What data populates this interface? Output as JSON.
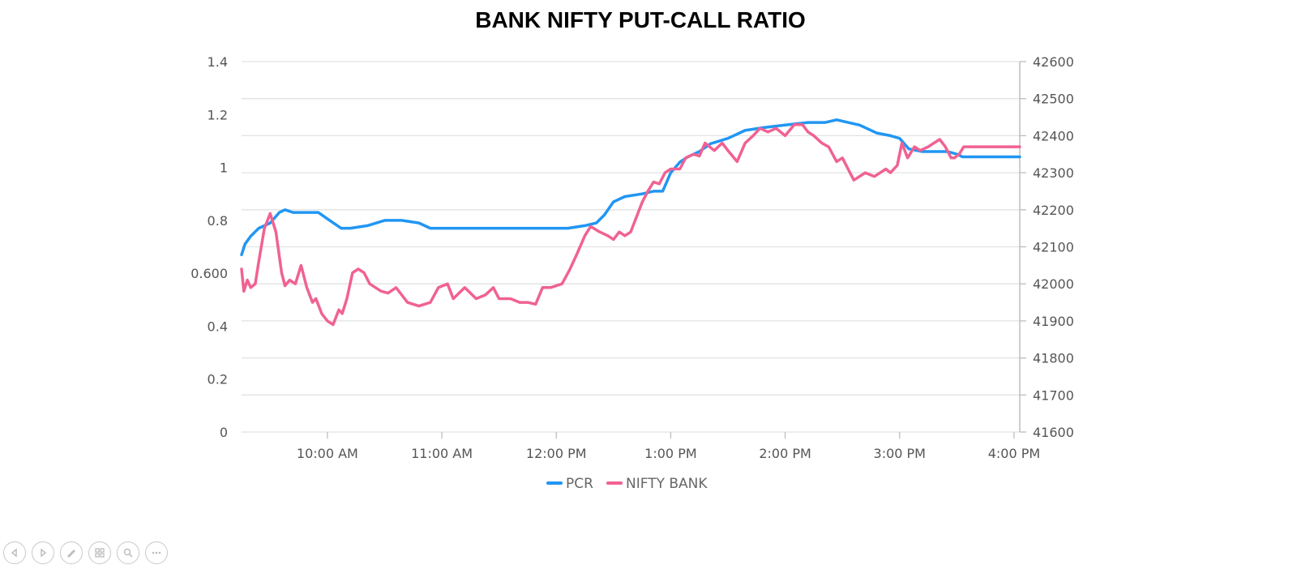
{
  "chart_data": {
    "type": "line",
    "title": "BANK NIFTY PUT-CALL RATIO",
    "xlabel": "",
    "ylabel": "",
    "x_ticks": [
      "10:00 AM",
      "11:00 AM",
      "12:00 PM",
      "1:00 PM",
      "2:00 PM",
      "3:00 PM",
      "4:00 PM"
    ],
    "x_range_hours": [
      9.25,
      16.05
    ],
    "y_left": {
      "ticks": [
        "0",
        "0.2",
        "0.4",
        "0.600",
        "0.8",
        "1",
        "1.2",
        "1.4"
      ],
      "ylim": [
        0,
        1.4
      ]
    },
    "y_right": {
      "ticks": [
        "41600",
        "41700",
        "41800",
        "41900",
        "42000",
        "42100",
        "42200",
        "42300",
        "42400",
        "42500",
        "42600"
      ],
      "ylim": [
        41600,
        42600
      ]
    },
    "grid": true,
    "legend_position": "bottom-center",
    "series": [
      {
        "name": "PCR",
        "color": "#2196f3",
        "axis": "left",
        "x": [
          9.25,
          9.28,
          9.33,
          9.4,
          9.5,
          9.58,
          9.63,
          9.7,
          9.8,
          9.92,
          10.02,
          10.12,
          10.2,
          10.35,
          10.5,
          10.65,
          10.8,
          10.9,
          11.2,
          11.5,
          11.8,
          12.1,
          12.25,
          12.35,
          12.42,
          12.5,
          12.6,
          12.75,
          12.85,
          12.93,
          13.0,
          13.08,
          13.15,
          13.25,
          13.35,
          13.5,
          13.65,
          13.8,
          14.0,
          14.2,
          14.35,
          14.45,
          14.55,
          14.65,
          14.8,
          14.92,
          15.0,
          15.08,
          15.2,
          15.3,
          15.42,
          15.5,
          15.55,
          15.6,
          16.05
        ],
        "y": [
          0.67,
          0.71,
          0.74,
          0.77,
          0.79,
          0.83,
          0.84,
          0.83,
          0.83,
          0.83,
          0.8,
          0.77,
          0.77,
          0.78,
          0.8,
          0.8,
          0.79,
          0.77,
          0.77,
          0.77,
          0.77,
          0.77,
          0.78,
          0.79,
          0.82,
          0.87,
          0.89,
          0.9,
          0.91,
          0.91,
          0.98,
          1.02,
          1.04,
          1.06,
          1.09,
          1.11,
          1.14,
          1.15,
          1.16,
          1.17,
          1.17,
          1.18,
          1.17,
          1.16,
          1.13,
          1.12,
          1.11,
          1.07,
          1.06,
          1.06,
          1.06,
          1.05,
          1.04,
          1.04,
          1.04
        ]
      },
      {
        "name": "NIFTY BANK",
        "color": "#f06292",
        "axis": "right",
        "x": [
          9.25,
          9.27,
          9.3,
          9.33,
          9.37,
          9.4,
          9.45,
          9.5,
          9.55,
          9.6,
          9.63,
          9.67,
          9.72,
          9.77,
          9.82,
          9.87,
          9.9,
          9.95,
          10.0,
          10.05,
          10.1,
          10.13,
          10.17,
          10.22,
          10.27,
          10.32,
          10.37,
          10.42,
          10.47,
          10.53,
          10.6,
          10.7,
          10.8,
          10.9,
          10.97,
          11.05,
          11.1,
          11.2,
          11.3,
          11.38,
          11.45,
          11.5,
          11.6,
          11.68,
          11.75,
          11.82,
          11.88,
          11.95,
          12.05,
          12.12,
          12.18,
          12.25,
          12.3,
          12.38,
          12.45,
          12.5,
          12.55,
          12.6,
          12.65,
          12.7,
          12.75,
          12.8,
          12.85,
          12.9,
          12.95,
          13.0,
          13.08,
          13.13,
          13.2,
          13.25,
          13.3,
          13.38,
          13.45,
          13.5,
          13.58,
          13.65,
          13.72,
          13.78,
          13.85,
          13.92,
          14.0,
          14.08,
          14.15,
          14.2,
          14.25,
          14.32,
          14.38,
          14.45,
          14.5,
          14.55,
          14.6,
          14.7,
          14.78,
          14.88,
          14.92,
          14.98,
          15.02,
          15.07,
          15.13,
          15.18,
          15.25,
          15.3,
          15.35,
          15.4,
          15.45,
          15.48,
          15.52,
          15.56,
          16.05
        ],
        "y": [
          42040,
          41980,
          42010,
          41990,
          42000,
          42060,
          42150,
          42190,
          42140,
          42030,
          41995,
          42010,
          42000,
          42050,
          41990,
          41950,
          41960,
          41920,
          41900,
          41890,
          41930,
          41920,
          41960,
          42030,
          42040,
          42030,
          42000,
          41990,
          41980,
          41975,
          41990,
          41950,
          41940,
          41950,
          41990,
          42000,
          41960,
          41990,
          41960,
          41970,
          41990,
          41960,
          41960,
          41950,
          41950,
          41945,
          41990,
          41990,
          42000,
          42040,
          42080,
          42130,
          42155,
          42140,
          42130,
          42120,
          42140,
          42130,
          42140,
          42180,
          42220,
          42250,
          42275,
          42270,
          42300,
          42310,
          42310,
          42340,
          42350,
          42345,
          42380,
          42360,
          42380,
          42360,
          42330,
          42380,
          42400,
          42420,
          42410,
          42420,
          42400,
          42430,
          42430,
          42410,
          42400,
          42380,
          42370,
          42330,
          42340,
          42310,
          42280,
          42300,
          42290,
          42310,
          42300,
          42320,
          42380,
          42340,
          42370,
          42360,
          42370,
          42380,
          42390,
          42370,
          42340,
          42340,
          42350,
          42370,
          42370
        ]
      }
    ]
  },
  "legend": [
    {
      "label": "PCR",
      "color": "#2196f3"
    },
    {
      "label": "NIFTY BANK",
      "color": "#f06292"
    }
  ],
  "toolbar": {
    "buttons": [
      "previous-slide-icon",
      "next-slide-icon",
      "pen-icon",
      "slides-grid-icon",
      "zoom-icon",
      "more-options-icon"
    ]
  }
}
